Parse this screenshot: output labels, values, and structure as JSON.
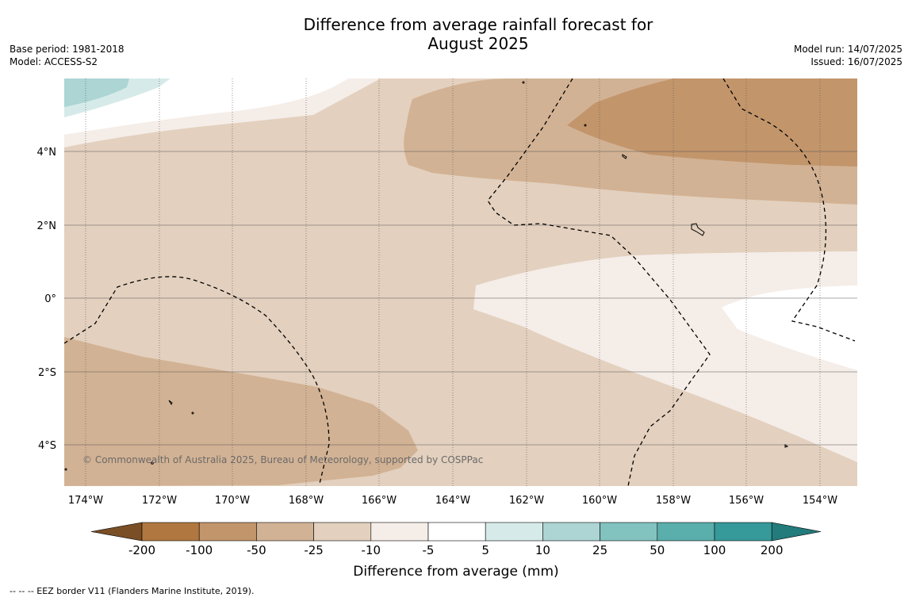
{
  "title_line1": "Difference from average rainfall forecast for",
  "title_line2": "August 2025",
  "meta_left": {
    "base_period": "Base period: 1981-2018",
    "model": "Model: ACCESS-S2"
  },
  "meta_right": {
    "model_run": "Model run: 14/07/2025",
    "issued": "Issued: 16/07/2025"
  },
  "copyright": "© Commonwealth of Australia 2025, Bureau of Meteorology, supported by COSPPac",
  "footer_note": "--  --  -- EEZ border V11 (Flanders Marine Institute, 2019).",
  "map": {
    "lat_labels": [
      "4°N",
      "2°N",
      "0°",
      "2°S",
      "4°S"
    ],
    "lon_labels": [
      "174°W",
      "172°W",
      "170°W",
      "168°W",
      "166°W",
      "164°W",
      "162°W",
      "160°W",
      "158°W",
      "156°W",
      "154°W"
    ]
  },
  "colorbar": {
    "title": "Difference from average (mm)",
    "ticks": [
      "-200",
      "-100",
      "-50",
      "-25",
      "-10",
      "-5",
      "5",
      "10",
      "25",
      "50",
      "100",
      "200"
    ],
    "colors": [
      "#7a4f25",
      "#b07840",
      "#c2956b",
      "#d2b294",
      "#e3d0be",
      "#f5ede8",
      "#ffffff",
      "#d6ebe9",
      "#acd5d4",
      "#82c2bf",
      "#5aaeab",
      "#36999a",
      "#237b7b"
    ]
  }
}
